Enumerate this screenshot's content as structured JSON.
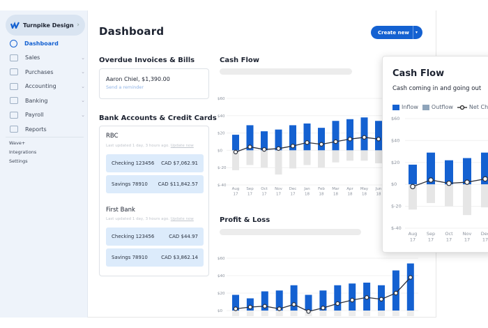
{
  "sidebar": {
    "business_name": "Turnpike Design",
    "items": [
      {
        "label": "Dashboard",
        "icon": "dashboard-icon",
        "active": true,
        "expandable": false
      },
      {
        "label": "Sales",
        "icon": "sales-icon",
        "expandable": true
      },
      {
        "label": "Purchases",
        "icon": "cart-icon",
        "expandable": true
      },
      {
        "label": "Accounting",
        "icon": "scale-icon",
        "expandable": true
      },
      {
        "label": "Banking",
        "icon": "bank-icon",
        "expandable": true
      },
      {
        "label": "Payroll",
        "icon": "payroll-icon",
        "expandable": true
      },
      {
        "label": "Reports",
        "icon": "reports-icon",
        "expandable": false
      }
    ],
    "links": [
      "Wave+",
      "Integrations",
      "Settings"
    ]
  },
  "header": {
    "title": "Dashboard",
    "create_label": "Create new"
  },
  "overdue": {
    "title": "Overdue Invoices & Bills",
    "entry": "Aaron Chiel, $1,390.00",
    "action": "Send a reminder"
  },
  "banks": {
    "title": "Bank Accounts & Credit Cards",
    "list": [
      {
        "name": "RBC",
        "updated": "Last updated 1 day, 3 hours ago.",
        "update_link": "Update now",
        "accounts": [
          {
            "name": "Checking 123456",
            "balance": "CAD $7,062.91"
          },
          {
            "name": "Savings 78910",
            "balance": "CAD $11,842.57"
          }
        ]
      },
      {
        "name": "First Bank",
        "updated": "Last updated 1 day, 3 hours ago.",
        "update_link": "Update now",
        "accounts": [
          {
            "name": "Checking 123456",
            "balance": "CAD $44.97"
          },
          {
            "name": "Savings 78910",
            "balance": "CAD $3,862.14"
          }
        ]
      }
    ]
  },
  "colors": {
    "accent": "#1461d1",
    "inflow": "#1461d1",
    "outflow": "#e6e6e6",
    "line": "#2b2f3a",
    "sidebar_bg": "#eef3fa",
    "account_bg": "#dcebfb"
  },
  "chart_data": [
    {
      "type": "bar",
      "title": "Cash Flow",
      "categories": [
        "Aug 17",
        "Sep 17",
        "Oct 17",
        "Nov 17",
        "Dec 17",
        "Jan 18",
        "Feb 18",
        "Mar 18",
        "Apr 18",
        "May 18",
        "Jun 18"
      ],
      "yticks": [
        "$60",
        "$40",
        "$20",
        "$0",
        "$-20",
        "$-40"
      ],
      "ylim": [
        -40,
        60
      ],
      "grid": true,
      "series": [
        {
          "kind": "bar",
          "values": [
            18,
            29,
            22,
            24,
            29,
            31,
            26,
            34,
            36,
            38,
            34
          ]
        },
        {
          "kind": "bar",
          "values": [
            -23,
            -17,
            -20,
            -28,
            -21,
            -17,
            -20,
            -14,
            -12,
            -12,
            -15
          ]
        },
        {
          "kind": "line",
          "values": [
            -2,
            4,
            1,
            2,
            5,
            9,
            7,
            10,
            13,
            15,
            13
          ]
        }
      ]
    },
    {
      "type": "bar",
      "title": "Profit & Loss",
      "yticks": [
        "$60",
        "$40",
        "$20",
        "$0"
      ],
      "ylim": [
        0,
        60
      ],
      "grid": true,
      "series": [
        {
          "kind": "bar",
          "values": [
            18,
            14,
            22,
            23,
            29,
            18,
            23,
            29,
            31,
            32,
            29,
            46,
            54
          ]
        },
        {
          "kind": "line",
          "values": [
            2,
            4,
            5,
            2,
            7,
            -1,
            3,
            8,
            12,
            15,
            13,
            20,
            38
          ]
        }
      ]
    },
    {
      "type": "bar",
      "title": "Cash Flow",
      "subtitle": "Cash coming in and going out",
      "legend": [
        "Inflow",
        "Outflow",
        "Net Che"
      ],
      "legend_position": "top",
      "categories": [
        "Aug 17",
        "Sep 17",
        "Oct 17",
        "Nov 17",
        "Dec 17"
      ],
      "yticks": [
        "$60",
        "$40",
        "$20",
        "$0",
        "$-20",
        "$-40"
      ],
      "ylim": [
        -40,
        60
      ],
      "grid": true,
      "series": [
        {
          "name": "Inflow",
          "kind": "bar",
          "values": [
            18,
            29,
            22,
            24,
            29
          ]
        },
        {
          "name": "Outflow",
          "kind": "bar",
          "values": [
            -23,
            -17,
            -20,
            -28,
            -21
          ]
        },
        {
          "name": "Net Che",
          "kind": "line",
          "values": [
            -2,
            4,
            1,
            2,
            5
          ]
        }
      ]
    }
  ]
}
